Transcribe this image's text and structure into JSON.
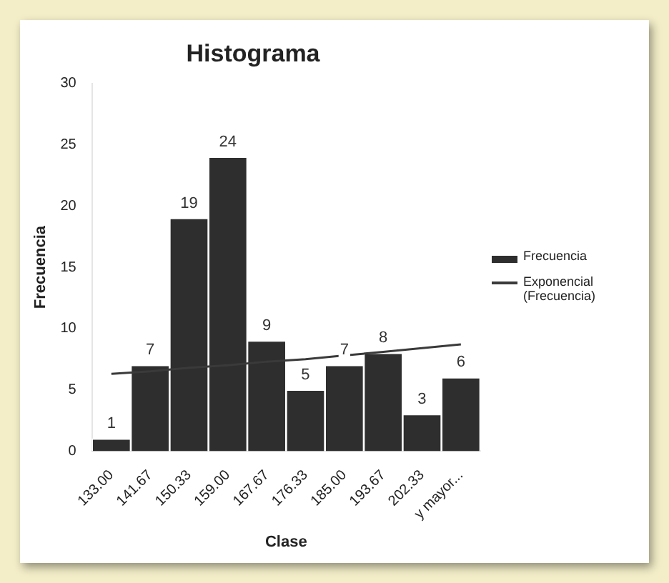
{
  "chart_data": {
    "type": "bar",
    "title": "Histograma",
    "xlabel": "Clase",
    "ylabel": "Frecuencia",
    "categories": [
      "133.00",
      "141.67",
      "150.33",
      "159.00",
      "167.67",
      "176.33",
      "185.00",
      "193.67",
      "202.33",
      "y mayor..."
    ],
    "series": [
      {
        "name": "Frecuencia",
        "color": "#2e2e2e",
        "values": [
          1,
          7,
          19,
          24,
          9,
          5,
          7,
          8,
          3,
          6
        ],
        "value_labels": [
          "1",
          "7",
          "19",
          "24",
          "9",
          "5",
          "7",
          "8",
          "3",
          "6"
        ]
      },
      {
        "name": "Exponencial (Frecuencia)",
        "type": "line",
        "color": "#3a3a3a",
        "values": [
          6.3,
          6.5,
          6.8,
          7.0,
          7.3,
          7.5,
          7.8,
          8.1,
          8.4,
          8.7
        ]
      }
    ],
    "ylim": [
      0,
      30
    ],
    "yticks": [
      0,
      5,
      10,
      15,
      20,
      25,
      30
    ],
    "grid": false,
    "legend": "right",
    "marker": "none"
  }
}
